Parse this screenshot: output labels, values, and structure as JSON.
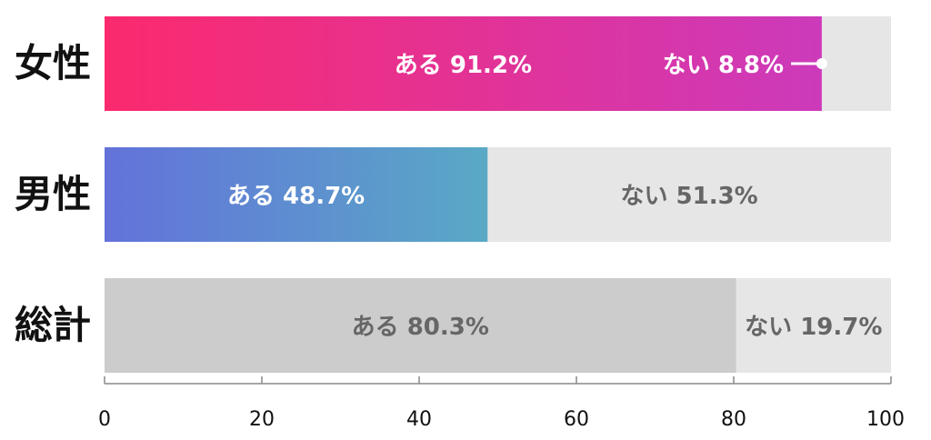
{
  "chart_data": {
    "type": "bar",
    "orientation": "horizontal",
    "stacked": true,
    "categories": [
      "女性",
      "男性",
      "総計"
    ],
    "series": [
      {
        "name": "ある",
        "values": [
          91.2,
          48.7,
          80.3
        ]
      },
      {
        "name": "ない",
        "values": [
          8.8,
          51.3,
          19.7
        ]
      }
    ],
    "data_labels": [
      {
        "yes": "ある 91.2%",
        "no": "ない 8.8%"
      },
      {
        "yes": "ある 48.7%",
        "no": "ない 51.3%"
      },
      {
        "yes": "ある 80.3%",
        "no": "ない 19.7%"
      }
    ],
    "xlim": [
      0,
      100
    ],
    "xticks": [
      0,
      20,
      40,
      60,
      80,
      100
    ],
    "xtick_labels": [
      "0",
      "20",
      "40",
      "60",
      "80",
      "100"
    ],
    "grid": false,
    "legend": "none",
    "colors": {
      "female_yes_start": "#fb2a6e",
      "female_yes_end": "#cc3abb",
      "male_yes_start": "#6372da",
      "male_yes_end": "#59a9c6",
      "total_yes": "#cccccc",
      "no": "#e6e6e6",
      "axis": "#888888",
      "label_light": "#ffffff",
      "label_dark": "#666666",
      "category_text": "#111111"
    }
  }
}
